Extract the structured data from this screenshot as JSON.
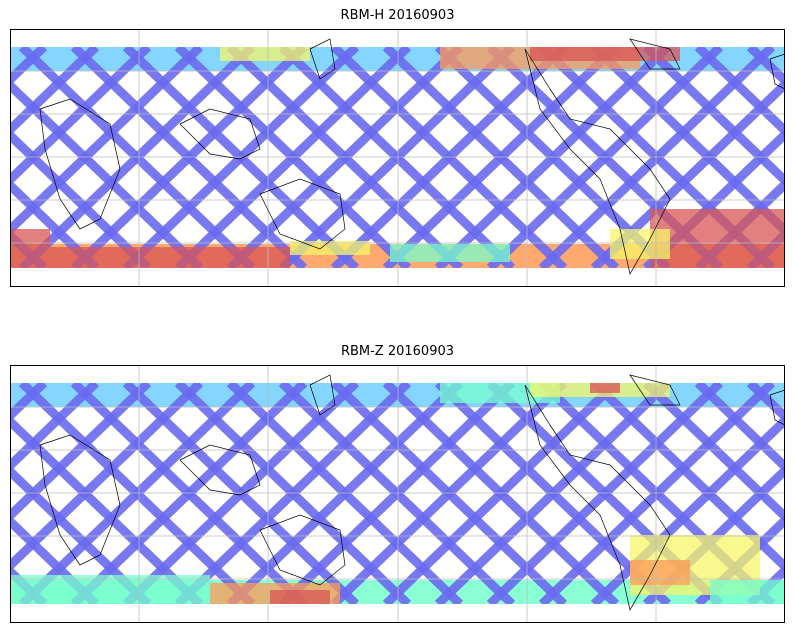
{
  "panels": [
    {
      "title": "RBM-H 20160903",
      "id": "rbm-h"
    },
    {
      "title": "RBM-Z 20160903",
      "id": "rbm-z"
    }
  ],
  "colors": {
    "swath_low": "#6a6af0",
    "swath_mid": "#66ccff",
    "swath_cyan": "#77ffcc",
    "swath_yellow": "#f5f56a",
    "swath_orange": "#ff9a55",
    "swath_high": "#d85555",
    "coastline": "#000000",
    "grid": "#bbbbbb"
  }
}
